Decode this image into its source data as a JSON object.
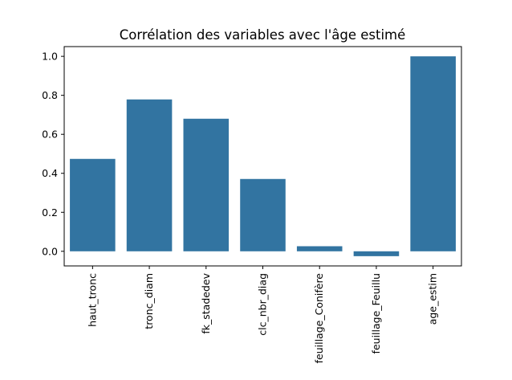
{
  "chart_data": {
    "type": "bar",
    "title": "Corrélation des variables avec l'âge estimé",
    "xlabel": "",
    "ylabel": "",
    "categories": [
      "haut_tronc",
      "tronc_diam",
      "fk_stadedev",
      "clc_nbr_diag",
      "feuillage_Conifère",
      "feuillage_Feuillu",
      "age_estim"
    ],
    "values": [
      0.474,
      0.779,
      0.68,
      0.371,
      0.026,
      -0.025,
      1.0
    ],
    "ylim": [
      -0.075,
      1.05
    ],
    "yticks": [
      0.0,
      0.2,
      0.4,
      0.6,
      0.8,
      1.0
    ],
    "ytick_labels": [
      "0.0",
      "0.2",
      "0.4",
      "0.6",
      "0.8",
      "1.0"
    ],
    "bar_color": "#3274a1",
    "grid": false,
    "legend": "none"
  }
}
